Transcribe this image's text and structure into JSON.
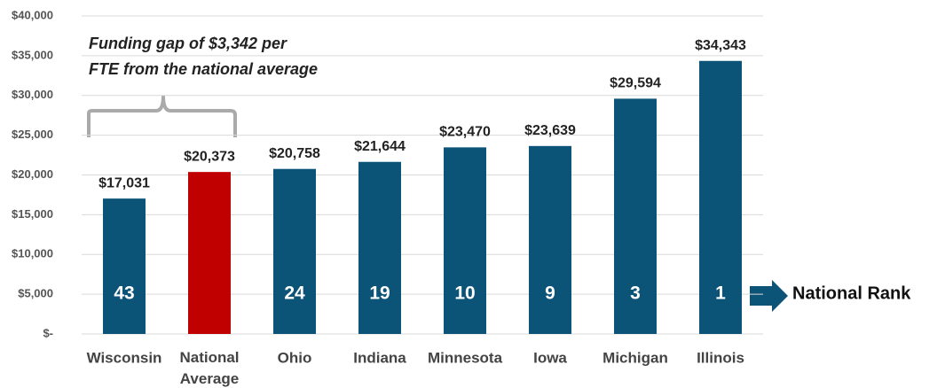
{
  "chart_data": {
    "type": "bar",
    "categories": [
      "Wisconsin",
      "National Average",
      "Ohio",
      "Indiana",
      "Minnesota",
      "Iowa",
      "Michigan",
      "Illinois"
    ],
    "values": [
      17031,
      20373,
      20758,
      21644,
      23470,
      23639,
      29594,
      34343
    ],
    "value_labels": [
      "$17,031",
      "$20,373",
      "$20,758",
      "$21,644",
      "$23,470",
      "$23,639",
      "$29,594",
      "$34,343"
    ],
    "colors": [
      "#0b5377",
      "#c00000",
      "#0b5377",
      "#0b5377",
      "#0b5377",
      "#0b5377",
      "#0b5377",
      "#0b5377"
    ],
    "ranks": [
      43,
      null,
      24,
      19,
      10,
      9,
      3,
      1
    ],
    "rank_label": "National Rank",
    "annotation": [
      "Funding gap of $3,342 per",
      "FTE from the national average"
    ],
    "ylim": [
      0,
      40000
    ],
    "yticks": [
      {
        "value": 0,
        "label": "$-"
      },
      {
        "value": 5000,
        "label": "$5,000"
      },
      {
        "value": 10000,
        "label": "$10,000"
      },
      {
        "value": 15000,
        "label": "$15,000"
      },
      {
        "value": 20000,
        "label": "$20,000"
      },
      {
        "value": 25000,
        "label": "$25,000"
      },
      {
        "value": 30000,
        "label": "$30,000"
      },
      {
        "value": 35000,
        "label": "$35,000"
      },
      {
        "value": 40000,
        "label": "$40,000"
      }
    ],
    "grid": true
  }
}
